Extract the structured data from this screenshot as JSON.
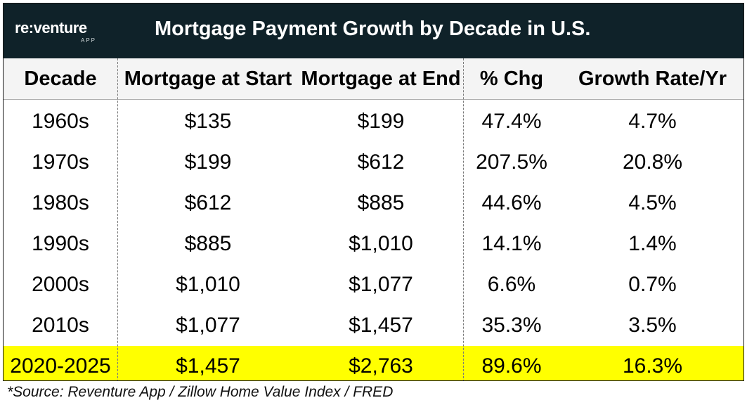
{
  "logo": {
    "word": "re:venture",
    "sub": "APP"
  },
  "title": "Mortgage Payment Growth by Decade in U.S.",
  "columns": [
    "Decade",
    "Mortgage at Start",
    "Mortgage at End",
    "% Chg",
    "Growth Rate/Yr"
  ],
  "rows": [
    [
      "1960s",
      "$135",
      "$199",
      "47.4%",
      "4.7%"
    ],
    [
      "1970s",
      "$199",
      "$612",
      "207.5%",
      "20.8%"
    ],
    [
      "1980s",
      "$612",
      "$885",
      "44.6%",
      "4.5%"
    ],
    [
      "1990s",
      "$885",
      "$1,010",
      "14.1%",
      "1.4%"
    ],
    [
      "2000s",
      "$1,010",
      "$1,077",
      "6.6%",
      "0.7%"
    ],
    [
      "2010s",
      "$1,077",
      "$1,457",
      "35.3%",
      "3.5%"
    ],
    [
      "2020-2025",
      "$1,457",
      "$2,763",
      "89.6%",
      "16.3%"
    ]
  ],
  "highlight_color": "#ffff00",
  "header_bg": "#0f2229",
  "source": "*Source: Reventure App / Zillow Home Value Index / FRED"
}
